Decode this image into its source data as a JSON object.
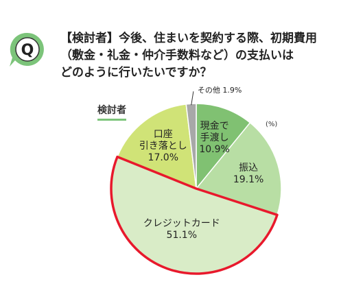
{
  "badge": {
    "letter": "Q",
    "bubble_color": "#7cc47a"
  },
  "question": {
    "lines": [
      "【検討者】今後、住まいを契約する際、初期費用",
      "（敷金・礼金・仲介手数料など）の支払いは",
      "どのように行いたいですか？"
    ]
  },
  "segment_label": "検討者",
  "chart_data": {
    "type": "pie",
    "unit": "(%)",
    "start_angle_deg": 0,
    "direction": "clockwise",
    "slices": [
      {
        "label": [
          "現金で",
          "手渡し"
        ],
        "value": 10.9,
        "color": "#80c172"
      },
      {
        "label": [
          "振込"
        ],
        "value": 19.1,
        "color": "#b8dea4"
      },
      {
        "label": [
          "クレジットカード"
        ],
        "value": 51.1,
        "color": "#d9ecc7",
        "highlight": true,
        "highlight_color": "#e8192c"
      },
      {
        "label": [
          "口座",
          "引き落とし"
        ],
        "value": 17.0,
        "color": "#d0e377"
      },
      {
        "label": [
          "その他"
        ],
        "value": 1.9,
        "color": "#a8a8a8",
        "outside_label": true
      }
    ]
  }
}
